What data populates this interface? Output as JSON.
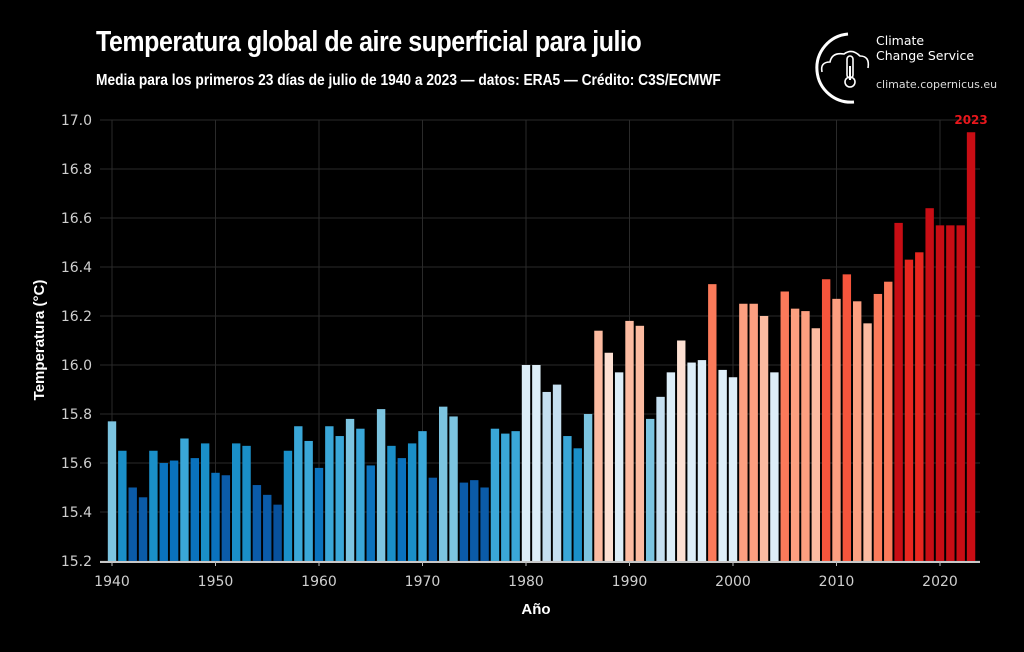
{
  "header": {
    "title": "Temperatura global de aire superficial para julio",
    "subtitle": "Media para los primeros 23 días de julio de 1940 a 2023 — datos: ERA5 — Crédito: C3S/ECMWF"
  },
  "logo": {
    "icon": "cloud-thermometer-icon",
    "line1": "Climate",
    "line2": "Change Service",
    "url": "climate.copernicus.eu"
  },
  "chart_data": {
    "type": "bar",
    "title": "Temperatura global de aire superficial para julio",
    "subtitle": "Media para los primeros 23 días de julio de 1940 a 2023 — datos: ERA5 — Crédito: C3S/ECMWF",
    "xlabel": "Año",
    "ylabel": "Temperatura (°C)",
    "ylim": [
      15.2,
      17.0
    ],
    "yticks": [
      "15.2",
      "15.4",
      "15.6",
      "15.8",
      "16.0",
      "16.2",
      "16.4",
      "16.6",
      "16.8",
      "17.0"
    ],
    "xticks": [
      "1940",
      "1950",
      "1960",
      "1970",
      "1980",
      "1990",
      "2000",
      "2010",
      "2020"
    ],
    "grid": true,
    "highlight": {
      "label": "2023",
      "color": "#e8171c"
    },
    "categories": [
      1940,
      1941,
      1942,
      1943,
      1944,
      1945,
      1946,
      1947,
      1948,
      1949,
      1950,
      1951,
      1952,
      1953,
      1954,
      1955,
      1956,
      1957,
      1958,
      1959,
      1960,
      1961,
      1962,
      1963,
      1964,
      1965,
      1966,
      1967,
      1968,
      1969,
      1970,
      1971,
      1972,
      1973,
      1974,
      1975,
      1976,
      1977,
      1978,
      1979,
      1980,
      1981,
      1982,
      1983,
      1984,
      1985,
      1986,
      1987,
      1988,
      1989,
      1990,
      1991,
      1992,
      1993,
      1994,
      1995,
      1996,
      1997,
      1998,
      1999,
      2000,
      2001,
      2002,
      2003,
      2004,
      2005,
      2006,
      2007,
      2008,
      2009,
      2010,
      2011,
      2012,
      2013,
      2014,
      2015,
      2016,
      2017,
      2018,
      2019,
      2020,
      2021,
      2022,
      2023
    ],
    "values": [
      15.77,
      15.65,
      15.5,
      15.46,
      15.65,
      15.6,
      15.61,
      15.7,
      15.62,
      15.68,
      15.56,
      15.55,
      15.68,
      15.67,
      15.51,
      15.47,
      15.43,
      15.65,
      15.75,
      15.69,
      15.58,
      15.75,
      15.71,
      15.78,
      15.74,
      15.59,
      15.82,
      15.67,
      15.62,
      15.68,
      15.73,
      15.54,
      15.83,
      15.79,
      15.52,
      15.53,
      15.5,
      15.74,
      15.72,
      15.73,
      16.0,
      16.0,
      15.89,
      15.92,
      15.71,
      15.66,
      15.8,
      16.14,
      16.05,
      15.97,
      16.18,
      16.16,
      15.78,
      15.87,
      15.97,
      16.1,
      16.01,
      16.02,
      16.33,
      15.98,
      15.95,
      16.25,
      16.25,
      16.2,
      15.97,
      16.3,
      16.23,
      16.22,
      16.15,
      16.35,
      16.27,
      16.37,
      16.26,
      16.17,
      16.29,
      16.34,
      16.58,
      16.43,
      16.46,
      16.64,
      16.57,
      16.57,
      16.57,
      16.95
    ],
    "colors": {
      "scale": [
        "#08519c",
        "#0b5ba8",
        "#0a72bd",
        "#1a8fc8",
        "#3aa7d8",
        "#7cc4e0",
        "#c5dff0",
        "#ddeef8",
        "#fde0d2",
        "#fcbba1",
        "#fc9f80",
        "#fb7a5a",
        "#f6553c",
        "#e8271f",
        "#c80d14"
      ],
      "thresholds": [
        15.45,
        15.55,
        15.62,
        15.68,
        15.76,
        15.85,
        15.94,
        16.03,
        16.12,
        16.2,
        16.27,
        16.34,
        16.4,
        16.5
      ]
    }
  }
}
